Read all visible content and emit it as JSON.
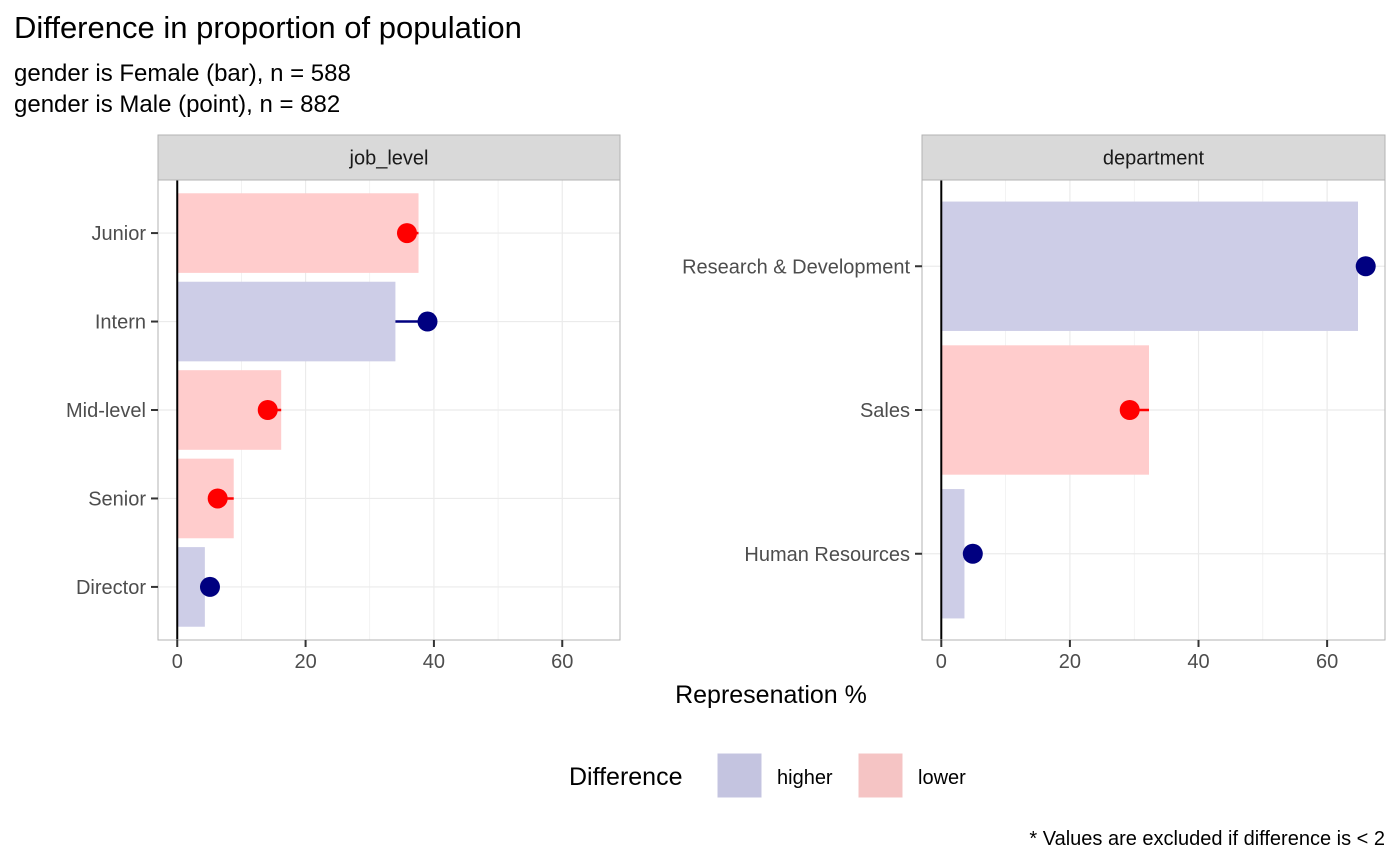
{
  "title": "Difference in proportion of population",
  "subtitle_lines": [
    "gender is Female (bar), n = 588",
    "gender is Male (point), n = 882"
  ],
  "caption": "* Values are excluded if difference is < 2",
  "colors": {
    "higher": "#cdcde7",
    "lower": "#ffcccc",
    "higher_point": "#000080",
    "lower_point": "#ff0000",
    "legend_higher": "#c4c4e0",
    "legend_lower": "#f5c4c4",
    "strip": "#d9d9d9",
    "panel_border": "#b3b3b3"
  },
  "chart_data": {
    "type": "bar",
    "xlabel": "Represenation %",
    "xlim": [
      -3,
      69
    ],
    "x_ticks": [
      0,
      20,
      40,
      60
    ],
    "grid": true,
    "legend": {
      "title": "Difference",
      "position": "bottom",
      "entries": [
        {
          "name": "higher",
          "key": "higher"
        },
        {
          "name": "lower",
          "key": "lower"
        }
      ]
    },
    "panels": [
      {
        "strip": "job_level",
        "categories": [
          "Junior",
          "Intern",
          "Mid-level",
          "Senior",
          "Director"
        ],
        "bar_values": [
          37.6,
          34.0,
          16.2,
          8.8,
          4.3
        ],
        "point_values": [
          35.8,
          39.0,
          14.1,
          6.3,
          5.1
        ],
        "difference": [
          "lower",
          "higher",
          "lower",
          "lower",
          "higher"
        ]
      },
      {
        "strip": "department",
        "categories": [
          "Research & Development",
          "Sales",
          "Human Resources"
        ],
        "bar_values": [
          64.8,
          32.3,
          3.6
        ],
        "point_values": [
          66.0,
          29.3,
          4.9
        ],
        "difference": [
          "higher",
          "lower",
          "higher"
        ]
      }
    ]
  }
}
